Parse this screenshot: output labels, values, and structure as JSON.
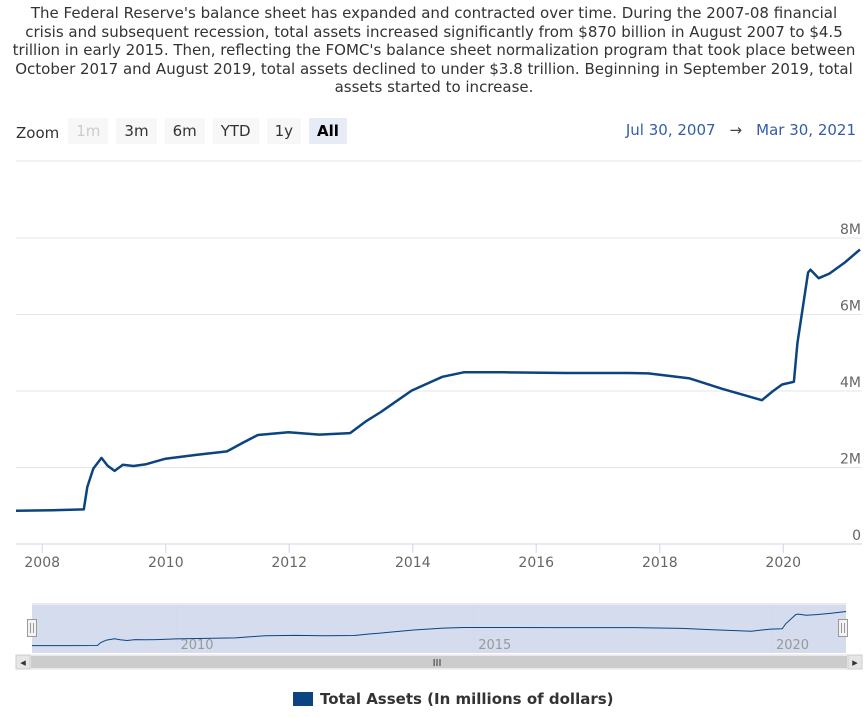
{
  "description": "The Federal Reserve's balance sheet has expanded and contracted over time. During the 2007-08 financial crisis and subsequent recession, total assets increased significantly from $870 billion in August 2007 to $4.5 trillion in early 2015. Then, reflecting the FOMC's balance sheet normalization program that took place between October 2017 and August 2019, total assets declined to under $3.8 trillion. Beginning in September 2019, total assets started to increase.",
  "zoom": {
    "label": "Zoom",
    "buttons": [
      {
        "label": "1m",
        "state": "disabled"
      },
      {
        "label": "3m",
        "state": "normal"
      },
      {
        "label": "6m",
        "state": "normal"
      },
      {
        "label": "YTD",
        "state": "normal"
      },
      {
        "label": "1y",
        "state": "normal"
      },
      {
        "label": "All",
        "state": "active"
      }
    ]
  },
  "range": {
    "from": "Jul 30, 2007",
    "arrow": "→",
    "to": "Mar 30, 2021"
  },
  "navigator": {
    "labels": [
      "2010",
      "2015",
      "2020"
    ],
    "scroll_grip": "III",
    "left_arrow": "◂",
    "right_arrow": "▸"
  },
  "colors": {
    "series": "#0b4480",
    "navigator_mask": "#ccd6eb",
    "grid": "#e6e6e6",
    "range_date": "#335cad"
  },
  "icons": {
    "scroll_left": "arrow-left-icon",
    "scroll_right": "arrow-right-icon",
    "handle": "grip-handle-icon"
  },
  "legend": {
    "label": "Total Assets (In millions of dollars)"
  },
  "chart_data": {
    "type": "line",
    "title": "",
    "xlabel": "",
    "ylabel": "",
    "x_range": [
      "2007-07-30",
      "2021-03-30"
    ],
    "ylim": [
      0,
      8000000
    ],
    "grid": true,
    "legend_position": "bottom-center",
    "x_ticks": [
      "2008",
      "2010",
      "2012",
      "2014",
      "2016",
      "2018",
      "2020"
    ],
    "y_ticks": [
      "0",
      "2M",
      "4M",
      "6M",
      "8M"
    ],
    "series": [
      {
        "name": "Total Assets (In millions of dollars)",
        "points": [
          [
            "2007-07-30",
            870000
          ],
          [
            "2008-03-01",
            880000
          ],
          [
            "2008-09-03",
            905000
          ],
          [
            "2008-09-24",
            1490000
          ],
          [
            "2008-10-29",
            1970000
          ],
          [
            "2008-12-17",
            2250000
          ],
          [
            "2009-01-21",
            2050000
          ],
          [
            "2009-03-04",
            1910000
          ],
          [
            "2009-04-22",
            2070000
          ],
          [
            "2009-06-24",
            2040000
          ],
          [
            "2009-09-02",
            2080000
          ],
          [
            "2009-12-30",
            2230000
          ],
          [
            "2010-06-30",
            2330000
          ],
          [
            "2010-12-29",
            2420000
          ],
          [
            "2011-03-30",
            2640000
          ],
          [
            "2011-06-29",
            2850000
          ],
          [
            "2011-12-28",
            2920000
          ],
          [
            "2012-06-27",
            2860000
          ],
          [
            "2012-12-26",
            2900000
          ],
          [
            "2013-03-27",
            3200000
          ],
          [
            "2013-06-26",
            3450000
          ],
          [
            "2013-09-25",
            3730000
          ],
          [
            "2013-12-25",
            4010000
          ],
          [
            "2014-06-25",
            4370000
          ],
          [
            "2014-10-29",
            4490000
          ],
          [
            "2015-06-24",
            4490000
          ],
          [
            "2016-06-29",
            4470000
          ],
          [
            "2017-06-28",
            4470000
          ],
          [
            "2017-10-25",
            4460000
          ],
          [
            "2018-06-27",
            4330000
          ],
          [
            "2019-01-02",
            4060000
          ],
          [
            "2019-08-28",
            3760000
          ],
          [
            "2019-10-30",
            3990000
          ],
          [
            "2019-12-25",
            4170000
          ],
          [
            "2020-03-04",
            4240000
          ],
          [
            "2020-03-25",
            5250000
          ],
          [
            "2020-05-27",
            7100000
          ],
          [
            "2020-06-10",
            7170000
          ],
          [
            "2020-07-29",
            6950000
          ],
          [
            "2020-09-30",
            7070000
          ],
          [
            "2020-12-30",
            7360000
          ],
          [
            "2021-03-30",
            7700000
          ]
        ]
      }
    ]
  }
}
